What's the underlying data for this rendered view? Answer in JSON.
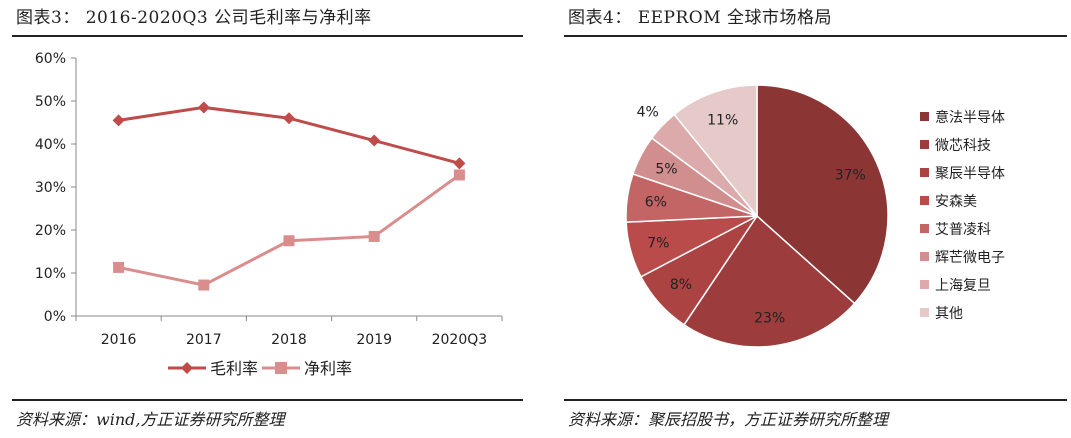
{
  "left": {
    "title": "图表3：   2016-2020Q3 公司毛利率与净利率",
    "source": "资料来源：wind,方正证券研究所整理"
  },
  "right": {
    "title": "图表4：   EEPROM 全球市场格局",
    "source": "资料来源：聚辰招股书，方正证券研究所整理"
  },
  "chart_data": [
    {
      "type": "line",
      "categories": [
        "2016",
        "2017",
        "2018",
        "2019",
        "2020Q3"
      ],
      "series": [
        {
          "name": "毛利率",
          "values": [
            45.5,
            48.5,
            46.0,
            40.8,
            35.5
          ],
          "color": "#bf4b4b",
          "marker": "diamond"
        },
        {
          "name": "净利率",
          "values": [
            11.3,
            7.2,
            17.5,
            18.5,
            32.8
          ],
          "color": "#d98d8d",
          "marker": "square"
        }
      ],
      "ylim": [
        0,
        60
      ],
      "yticks": [
        "0%",
        "10%",
        "20%",
        "30%",
        "40%",
        "50%",
        "60%"
      ],
      "grid": false,
      "legend": "bottom"
    },
    {
      "type": "pie",
      "labels": [
        "意法半导体",
        "微芯科技",
        "聚辰半导体",
        "安森美",
        "艾普凌科",
        "辉芒微电子",
        "上海复旦",
        "其他"
      ],
      "values": [
        37,
        23,
        8,
        7,
        6,
        5,
        4,
        11
      ],
      "data_labels": [
        "37%",
        "23%",
        "8%",
        "7%",
        "6%",
        "5%",
        "4%",
        "11%"
      ],
      "colors": [
        "#8c3535",
        "#9c3c3c",
        "#ab4343",
        "#b94b4b",
        "#c46565",
        "#d08e8e",
        "#dcaaaa",
        "#e6caca"
      ],
      "legend": "right"
    }
  ]
}
